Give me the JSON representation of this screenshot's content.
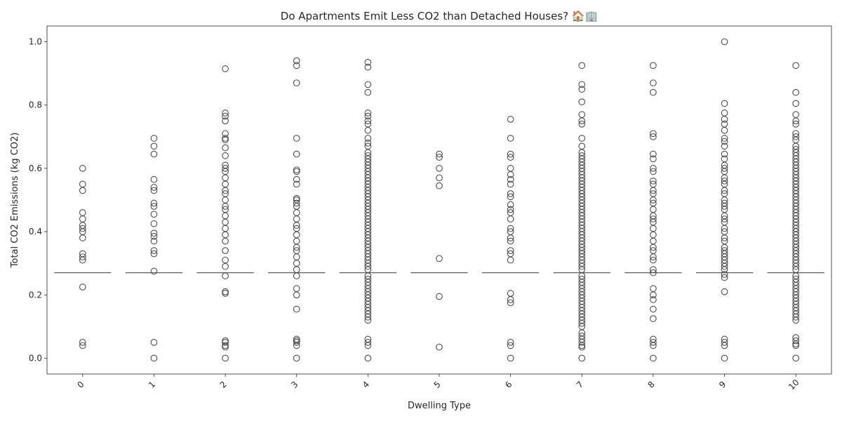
{
  "chart_data": {
    "type": "box",
    "title": "Do Apartments Emit Less CO2 than Detached Houses? 🏠🏢",
    "xlabel": "Dwelling Type",
    "ylabel": "Total CO2 Emissions (kg CO2)",
    "ylim": [
      -0.05,
      1.05
    ],
    "yticks": [
      "0.0",
      "0.2",
      "0.4",
      "0.6",
      "0.8",
      "1.0"
    ],
    "categories": [
      "0",
      "1",
      "2",
      "3",
      "4",
      "5",
      "6",
      "7",
      "8",
      "9",
      "10"
    ],
    "grid": false,
    "legend": "none",
    "colors": {
      "box": "#4c4c4c",
      "outlier": "#4c4c4c",
      "axis": "#262626"
    },
    "medians": [
      0.27,
      0.27,
      0.27,
      0.27,
      0.27,
      0.27,
      0.27,
      0.27,
      0.27,
      0.27,
      0.27
    ],
    "outliers": [
      [
        0.6,
        0.55,
        0.53,
        0.46,
        0.44,
        0.42,
        0.41,
        0.4,
        0.38,
        0.33,
        0.32,
        0.31,
        0.225,
        0.05,
        0.04
      ],
      [
        0.695,
        0.67,
        0.645,
        0.565,
        0.54,
        0.53,
        0.49,
        0.48,
        0.455,
        0.425,
        0.395,
        0.385,
        0.37,
        0.34,
        0.33,
        0.275,
        0.05,
        0.0
      ],
      [
        0.915,
        0.775,
        0.765,
        0.75,
        0.71,
        0.695,
        0.69,
        0.665,
        0.64,
        0.61,
        0.6,
        0.59,
        0.57,
        0.55,
        0.53,
        0.52,
        0.5,
        0.48,
        0.47,
        0.45,
        0.43,
        0.41,
        0.39,
        0.37,
        0.34,
        0.31,
        0.29,
        0.26,
        0.21,
        0.205,
        0.055,
        0.05,
        0.04,
        0.035,
        0.0
      ],
      [
        0.94,
        0.925,
        0.87,
        0.695,
        0.645,
        0.595,
        0.59,
        0.565,
        0.55,
        0.505,
        0.5,
        0.49,
        0.48,
        0.46,
        0.44,
        0.42,
        0.41,
        0.39,
        0.37,
        0.35,
        0.34,
        0.32,
        0.3,
        0.28,
        0.26,
        0.22,
        0.2,
        0.155,
        0.06,
        0.055,
        0.05,
        0.04,
        0.0
      ],
      [
        0.935,
        0.92,
        0.865,
        0.84,
        0.775,
        0.765,
        0.75,
        0.74,
        0.72,
        0.695,
        0.68,
        0.67,
        0.65,
        0.64,
        0.63,
        0.62,
        0.61,
        0.6,
        0.59,
        0.58,
        0.57,
        0.56,
        0.55,
        0.54,
        0.53,
        0.52,
        0.51,
        0.5,
        0.49,
        0.48,
        0.47,
        0.46,
        0.45,
        0.44,
        0.43,
        0.42,
        0.41,
        0.4,
        0.39,
        0.38,
        0.37,
        0.36,
        0.35,
        0.34,
        0.33,
        0.32,
        0.31,
        0.3,
        0.29,
        0.28,
        0.26,
        0.25,
        0.24,
        0.23,
        0.22,
        0.21,
        0.2,
        0.19,
        0.18,
        0.17,
        0.16,
        0.15,
        0.14,
        0.13,
        0.12,
        0.06,
        0.05,
        0.04,
        0.0
      ],
      [
        0.645,
        0.635,
        0.6,
        0.57,
        0.545,
        0.315,
        0.195,
        0.035
      ],
      [
        0.755,
        0.695,
        0.645,
        0.635,
        0.6,
        0.58,
        0.565,
        0.55,
        0.52,
        0.51,
        0.485,
        0.47,
        0.46,
        0.44,
        0.41,
        0.4,
        0.38,
        0.37,
        0.34,
        0.33,
        0.31,
        0.205,
        0.185,
        0.175,
        0.05,
        0.04,
        0.0
      ],
      [
        0.925,
        0.865,
        0.85,
        0.81,
        0.77,
        0.75,
        0.74,
        0.695,
        0.67,
        0.65,
        0.64,
        0.63,
        0.62,
        0.61,
        0.6,
        0.59,
        0.58,
        0.57,
        0.56,
        0.55,
        0.54,
        0.53,
        0.52,
        0.51,
        0.5,
        0.49,
        0.48,
        0.47,
        0.46,
        0.45,
        0.44,
        0.43,
        0.42,
        0.41,
        0.4,
        0.39,
        0.38,
        0.37,
        0.36,
        0.35,
        0.34,
        0.33,
        0.32,
        0.31,
        0.3,
        0.29,
        0.28,
        0.26,
        0.25,
        0.24,
        0.23,
        0.22,
        0.21,
        0.2,
        0.19,
        0.18,
        0.17,
        0.16,
        0.15,
        0.14,
        0.13,
        0.12,
        0.11,
        0.1,
        0.08,
        0.07,
        0.06,
        0.05,
        0.04,
        0.035,
        0.0
      ],
      [
        0.925,
        0.87,
        0.84,
        0.71,
        0.7,
        0.645,
        0.63,
        0.6,
        0.59,
        0.56,
        0.55,
        0.53,
        0.52,
        0.5,
        0.49,
        0.47,
        0.45,
        0.44,
        0.43,
        0.41,
        0.39,
        0.37,
        0.35,
        0.34,
        0.32,
        0.31,
        0.28,
        0.27,
        0.22,
        0.2,
        0.185,
        0.155,
        0.125,
        0.06,
        0.05,
        0.04,
        0.0
      ],
      [
        1.0,
        0.805,
        0.775,
        0.755,
        0.74,
        0.72,
        0.695,
        0.685,
        0.67,
        0.645,
        0.63,
        0.61,
        0.6,
        0.59,
        0.57,
        0.56,
        0.55,
        0.53,
        0.52,
        0.5,
        0.49,
        0.48,
        0.47,
        0.45,
        0.44,
        0.43,
        0.41,
        0.4,
        0.38,
        0.37,
        0.35,
        0.34,
        0.33,
        0.32,
        0.31,
        0.3,
        0.29,
        0.28,
        0.265,
        0.255,
        0.21,
        0.06,
        0.05,
        0.04,
        0.0
      ],
      [
        0.925,
        0.84,
        0.805,
        0.77,
        0.75,
        0.74,
        0.71,
        0.7,
        0.69,
        0.67,
        0.66,
        0.65,
        0.64,
        0.63,
        0.62,
        0.61,
        0.6,
        0.59,
        0.58,
        0.57,
        0.56,
        0.55,
        0.54,
        0.53,
        0.52,
        0.51,
        0.5,
        0.49,
        0.48,
        0.47,
        0.46,
        0.45,
        0.44,
        0.43,
        0.42,
        0.41,
        0.4,
        0.39,
        0.38,
        0.37,
        0.36,
        0.35,
        0.34,
        0.33,
        0.32,
        0.31,
        0.3,
        0.29,
        0.28,
        0.26,
        0.25,
        0.24,
        0.23,
        0.22,
        0.21,
        0.2,
        0.19,
        0.18,
        0.17,
        0.16,
        0.15,
        0.14,
        0.13,
        0.12,
        0.065,
        0.055,
        0.045,
        0.04,
        0.0
      ]
    ]
  }
}
